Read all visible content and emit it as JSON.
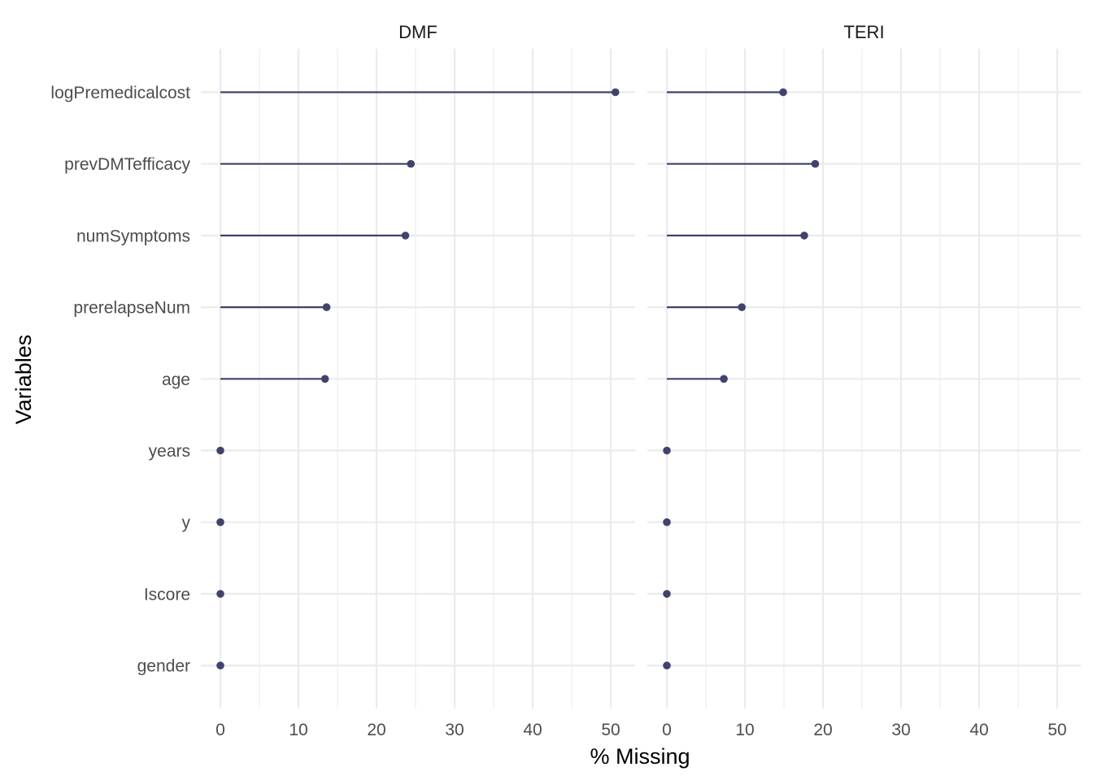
{
  "chart_data": {
    "type": "lollipop",
    "xlabel": "% Missing",
    "ylabel": "Variables",
    "xlim": [
      0,
      50
    ],
    "x_ticks": [
      0,
      10,
      20,
      30,
      40,
      50
    ],
    "grid": true,
    "legend": "none",
    "colors": {
      "line": "#41436b",
      "point": "#41436b",
      "grid": "#ebebeb"
    },
    "categories": [
      "logPremedicalcost",
      "prevDMTefficacy",
      "numSymptoms",
      "prerelapseNum",
      "age",
      "years",
      "y",
      "Iscore",
      "gender"
    ],
    "facets": [
      {
        "title": "DMF",
        "values": [
          50.6,
          24.4,
          23.7,
          13.6,
          13.4,
          0,
          0,
          0,
          0
        ]
      },
      {
        "title": "TERI",
        "values": [
          14.9,
          19.0,
          17.6,
          9.6,
          7.3,
          0,
          0,
          0,
          0
        ]
      }
    ]
  }
}
